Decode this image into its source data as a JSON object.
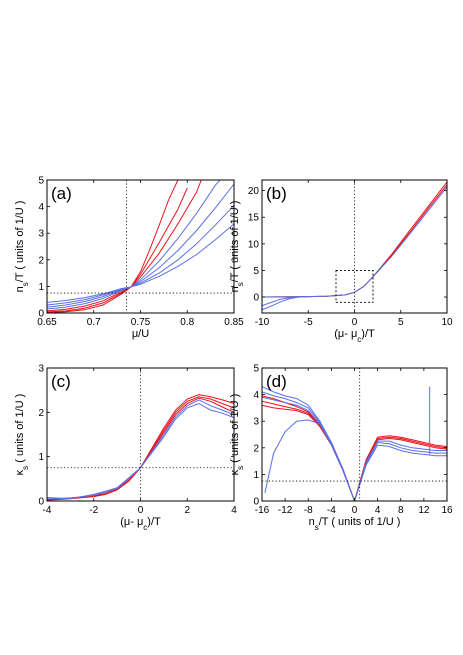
{
  "chart_data": [
    {
      "type": "line",
      "panel_label": "(a)",
      "xlabel": "μ/U",
      "ylabel": "n_s/T  ( units of 1/U )",
      "xlim": [
        0.65,
        0.85
      ],
      "ylim": [
        0,
        5
      ],
      "xticks": [
        "0.65",
        "0.7",
        "0.75",
        "0.8",
        "0.85"
      ],
      "yticks": [
        "0",
        "1",
        "2",
        "3",
        "4",
        "5"
      ],
      "guides": {
        "vline_x": 0.735,
        "hline_y": 0.75
      },
      "colors": {
        "red": "#e8141c",
        "blue": "#5a6fe6"
      },
      "series": [
        {
          "color": "red",
          "x": [
            0.65,
            0.67,
            0.69,
            0.71,
            0.73,
            0.74,
            0.75,
            0.76,
            0.77,
            0.78,
            0.79
          ],
          "y": [
            0.02,
            0.05,
            0.12,
            0.3,
            0.72,
            0.98,
            1.55,
            2.4,
            3.3,
            4.25,
            5.0
          ]
        },
        {
          "color": "red",
          "x": [
            0.65,
            0.67,
            0.69,
            0.71,
            0.73,
            0.74,
            0.75,
            0.77,
            0.79,
            0.8
          ],
          "y": [
            0.04,
            0.08,
            0.18,
            0.38,
            0.76,
            0.98,
            1.45,
            2.65,
            3.9,
            4.7
          ]
        },
        {
          "color": "red",
          "x": [
            0.65,
            0.67,
            0.69,
            0.71,
            0.73,
            0.74,
            0.75,
            0.77,
            0.79,
            0.81,
            0.815
          ],
          "y": [
            0.08,
            0.14,
            0.26,
            0.46,
            0.8,
            0.98,
            1.35,
            2.25,
            3.35,
            4.55,
            5.0
          ]
        },
        {
          "color": "blue",
          "x": [
            0.65,
            0.67,
            0.69,
            0.71,
            0.73,
            0.74,
            0.75,
            0.77,
            0.79,
            0.81,
            0.83,
            0.835
          ],
          "y": [
            0.15,
            0.22,
            0.35,
            0.55,
            0.85,
            0.98,
            1.25,
            1.95,
            2.8,
            3.75,
            4.8,
            5.0
          ]
        },
        {
          "color": "blue",
          "x": [
            0.65,
            0.67,
            0.69,
            0.71,
            0.73,
            0.74,
            0.75,
            0.77,
            0.79,
            0.81,
            0.83,
            0.85
          ],
          "y": [
            0.22,
            0.3,
            0.43,
            0.62,
            0.88,
            0.98,
            1.18,
            1.7,
            2.35,
            3.1,
            3.95,
            4.85
          ]
        },
        {
          "color": "blue",
          "x": [
            0.65,
            0.67,
            0.69,
            0.71,
            0.73,
            0.74,
            0.75,
            0.77,
            0.79,
            0.81,
            0.83,
            0.85
          ],
          "y": [
            0.3,
            0.38,
            0.5,
            0.68,
            0.9,
            0.98,
            1.12,
            1.5,
            2.0,
            2.6,
            3.3,
            4.05
          ]
        },
        {
          "color": "blue",
          "x": [
            0.65,
            0.67,
            0.69,
            0.71,
            0.73,
            0.74,
            0.75,
            0.77,
            0.79,
            0.81,
            0.83,
            0.85
          ],
          "y": [
            0.4,
            0.47,
            0.57,
            0.72,
            0.92,
            0.98,
            1.08,
            1.38,
            1.75,
            2.2,
            2.75,
            3.35
          ]
        }
      ]
    },
    {
      "type": "line",
      "panel_label": "(b)",
      "xlabel": "(μ- μ_c)/T",
      "ylabel": "n_s/T  ( units of 1/U )",
      "xlim": [
        -10,
        10
      ],
      "ylim": [
        -3,
        22
      ],
      "xticks": [
        "-10",
        "-5",
        "0",
        "5",
        "10"
      ],
      "yticks": [
        "0",
        "5",
        "10",
        "15",
        "20"
      ],
      "guides": {
        "vline_x": 0,
        "box": {
          "x": [
            -2,
            2
          ],
          "y": [
            -1,
            5
          ]
        }
      },
      "colors": {
        "red": "#e8141c",
        "blue": "#5a6fe6"
      },
      "series": [
        {
          "color": "red",
          "x": [
            -10,
            -6,
            -3,
            -1,
            0,
            1,
            2,
            4,
            6,
            8,
            10
          ],
          "y": [
            0.0,
            0.05,
            0.15,
            0.4,
            0.9,
            2.0,
            3.8,
            8.0,
            12.6,
            17.1,
            21.6
          ]
        },
        {
          "color": "red",
          "x": [
            -10,
            -6,
            -3,
            -1,
            0,
            1,
            2,
            4,
            6,
            8,
            10
          ],
          "y": [
            0.0,
            0.05,
            0.15,
            0.4,
            0.9,
            2.0,
            3.8,
            7.8,
            12.2,
            16.7,
            21.1
          ]
        },
        {
          "color": "blue",
          "x": [
            -10,
            -6,
            -3,
            -1,
            0,
            1,
            2,
            4,
            6,
            8,
            10
          ],
          "y": [
            0.0,
            0.05,
            0.15,
            0.4,
            0.9,
            2.0,
            3.8,
            7.6,
            11.9,
            16.3,
            20.7
          ]
        },
        {
          "color": "blue",
          "x": [
            -10,
            -9,
            -8,
            -7,
            -6,
            -5,
            -4
          ],
          "y": [
            -2.4,
            -1.7,
            -0.9,
            -0.3,
            0.0,
            0.05,
            0.1
          ]
        },
        {
          "color": "blue",
          "x": [
            -10,
            -9,
            -8,
            -7,
            -6
          ],
          "y": [
            -1.6,
            -1.0,
            -0.4,
            -0.1,
            0.0
          ]
        }
      ]
    },
    {
      "type": "line",
      "panel_label": "(c)",
      "xlabel": "(μ- μ_c)/T",
      "ylabel": "κ_s  ( units of 1/U )",
      "xlim": [
        -4,
        4
      ],
      "ylim": [
        0,
        3
      ],
      "xticks": [
        "-4",
        "-2",
        "0",
        "2",
        "4"
      ],
      "yticks": [
        "0",
        "1",
        "2",
        "3"
      ],
      "guides": {
        "vline_x": 0,
        "hline_y": 0.75
      },
      "colors": {
        "red": "#e8141c",
        "blue": "#5a6fe6"
      },
      "series": [
        {
          "color": "red",
          "x": [
            -4,
            -3,
            -2,
            -1.5,
            -1,
            -0.5,
            0,
            0.5,
            1,
            1.5,
            2,
            2.5,
            3,
            3.5,
            4
          ],
          "y": [
            0.02,
            0.05,
            0.1,
            0.15,
            0.25,
            0.45,
            0.75,
            1.2,
            1.65,
            2.05,
            2.3,
            2.4,
            2.35,
            2.28,
            2.2
          ]
        },
        {
          "color": "red",
          "x": [
            -4,
            -3,
            -2,
            -1.5,
            -1,
            -0.5,
            0,
            0.5,
            1,
            1.5,
            2,
            2.5,
            3,
            3.5,
            4
          ],
          "y": [
            0.03,
            0.06,
            0.11,
            0.16,
            0.26,
            0.46,
            0.75,
            1.18,
            1.6,
            2.0,
            2.25,
            2.35,
            2.3,
            2.2,
            2.1
          ]
        },
        {
          "color": "red",
          "x": [
            -4,
            -3,
            -2,
            -1.5,
            -1,
            -0.5,
            0,
            0.5,
            1,
            1.5,
            2,
            2.5,
            3,
            3.5,
            4
          ],
          "y": [
            0.04,
            0.07,
            0.12,
            0.17,
            0.27,
            0.47,
            0.75,
            1.15,
            1.55,
            1.95,
            2.2,
            2.32,
            2.25,
            2.12,
            2.0
          ]
        },
        {
          "color": "blue",
          "x": [
            -4,
            -3,
            -2,
            -1.5,
            -1,
            -0.5,
            0,
            0.5,
            1,
            1.5,
            2,
            2.5,
            3,
            3.5,
            4
          ],
          "y": [
            0.05,
            0.06,
            0.13,
            0.2,
            0.28,
            0.5,
            0.75,
            1.12,
            1.5,
            1.9,
            2.15,
            2.28,
            2.15,
            2.05,
            1.95
          ]
        },
        {
          "color": "blue",
          "x": [
            -4,
            -3,
            -2,
            -1.5,
            -1,
            -0.5,
            0,
            0.5,
            1,
            1.5,
            2,
            2.5,
            3,
            3.5,
            4
          ],
          "y": [
            0.08,
            0.05,
            0.15,
            0.22,
            0.3,
            0.52,
            0.75,
            1.1,
            1.45,
            1.85,
            2.1,
            2.2,
            2.05,
            1.98,
            1.88
          ]
        }
      ]
    },
    {
      "type": "line",
      "panel_label": "(d)",
      "xlabel": "n_s/T  ( units of 1/U )",
      "ylabel": "κ_s  ( units of 1/U )",
      "xlim": [
        -16,
        16
      ],
      "ylim": [
        0,
        5
      ],
      "xticks": [
        "-16",
        "-12",
        "-8",
        "-4",
        "0",
        "4",
        "8",
        "12",
        "16"
      ],
      "yticks": [
        "0",
        "1",
        "2",
        "3",
        "4",
        "5"
      ],
      "guides": {
        "vline_x": 0.9,
        "hline_y": 0.75
      },
      "colors": {
        "red": "#e8141c",
        "blue": "#5a6fe6"
      },
      "series": [
        {
          "color": "red",
          "x": [
            -16,
            -14,
            -12,
            -10,
            -8,
            -6,
            -4,
            -2,
            0,
            2,
            4,
            6,
            8,
            10,
            12,
            14,
            16
          ],
          "y": [
            3.95,
            3.85,
            3.7,
            3.55,
            3.35,
            2.9,
            2.2,
            1.2,
            0.0,
            1.55,
            2.4,
            2.45,
            2.4,
            2.3,
            2.2,
            2.1,
            2.05
          ]
        },
        {
          "color": "red",
          "x": [
            -16,
            -14,
            -12,
            -10,
            -8,
            -6,
            -4,
            -2,
            0,
            2,
            4,
            6,
            8,
            10,
            12,
            14,
            16
          ],
          "y": [
            3.75,
            3.65,
            3.55,
            3.45,
            3.3,
            2.85,
            2.15,
            1.2,
            0.0,
            1.5,
            2.35,
            2.4,
            2.35,
            2.25,
            2.15,
            2.05,
            2.0
          ]
        },
        {
          "color": "red",
          "x": [
            -16,
            -14,
            -12,
            -10,
            -8,
            -6,
            -4,
            -2,
            0,
            2,
            4,
            6,
            8,
            10,
            12,
            14,
            16
          ],
          "y": [
            3.6,
            3.5,
            3.45,
            3.4,
            3.25,
            2.8,
            2.1,
            1.15,
            0.0,
            1.45,
            2.3,
            2.35,
            2.3,
            2.2,
            2.1,
            2.0,
            1.95
          ]
        },
        {
          "color": "blue",
          "x": [
            -16,
            -14,
            -12,
            -10,
            -8,
            -6,
            -4,
            -2,
            0,
            2,
            4,
            6,
            8,
            10,
            12,
            14,
            16
          ],
          "y": [
            4.3,
            4.1,
            3.95,
            3.85,
            3.6,
            3.0,
            2.2,
            1.2,
            0.0,
            1.45,
            2.25,
            2.25,
            2.1,
            2.0,
            1.95,
            1.9,
            1.9
          ]
        },
        {
          "color": "blue",
          "x": [
            -16,
            -14,
            -12,
            -10,
            -8,
            -6,
            -4,
            -2,
            0,
            2,
            4,
            6,
            8,
            10,
            12,
            14,
            16
          ],
          "y": [
            4.1,
            3.95,
            3.85,
            3.7,
            3.5,
            2.95,
            2.15,
            1.2,
            0.0,
            1.4,
            2.2,
            2.15,
            2.0,
            1.9,
            1.85,
            1.8,
            1.8
          ]
        },
        {
          "color": "blue",
          "x": [
            -16,
            -14,
            -12,
            -10,
            -8,
            -6,
            -4,
            -2,
            0,
            2,
            4,
            6,
            8,
            10,
            12,
            14,
            16
          ],
          "y": [
            3.9,
            3.8,
            3.7,
            3.6,
            3.4,
            2.9,
            2.1,
            1.15,
            0.0,
            1.35,
            2.1,
            2.05,
            1.9,
            1.8,
            1.75,
            1.7,
            1.7
          ]
        },
        {
          "color": "blue",
          "x": [
            -15.5,
            -14,
            -12,
            -10,
            -8,
            -6,
            -4
          ],
          "y": [
            0.3,
            1.8,
            2.6,
            3.0,
            3.05,
            2.9,
            2.15
          ]
        },
        {
          "color": "blue",
          "x": [
            13,
            13,
            13
          ],
          "y": [
            1.75,
            4.3,
            1.75
          ]
        }
      ]
    }
  ]
}
